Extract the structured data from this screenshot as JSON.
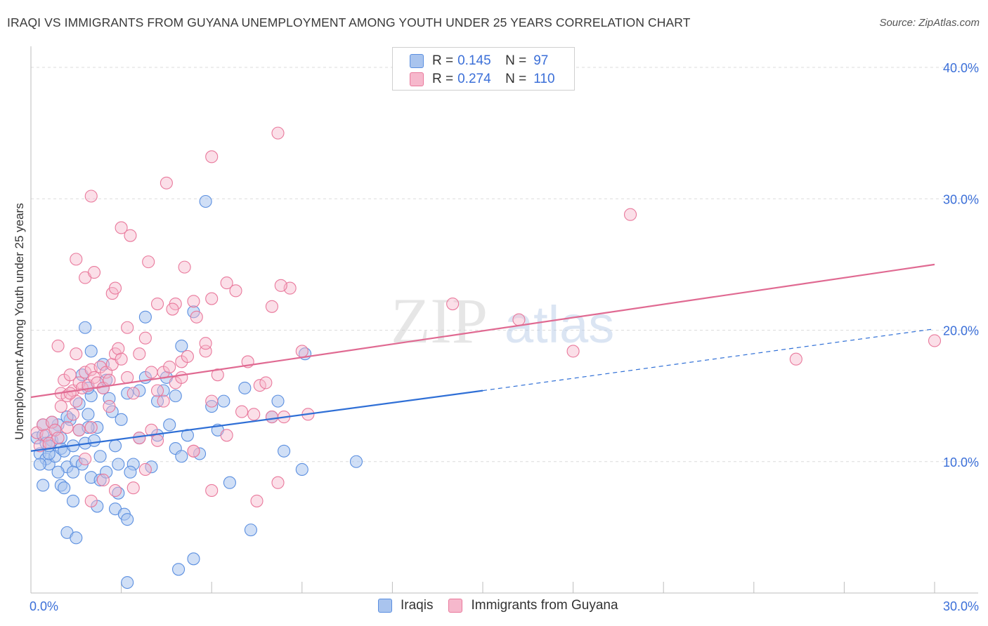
{
  "title": "IRAQI VS IMMIGRANTS FROM GUYANA UNEMPLOYMENT AMONG YOUTH UNDER 25 YEARS CORRELATION CHART",
  "source": "Source: ZipAtlas.com",
  "watermark": {
    "zip": "ZIP",
    "atlas": "atlas"
  },
  "colors": {
    "blue_fill": "#a9c4ee",
    "blue_stroke": "#5b8fe0",
    "blue_line": "#2f6fd6",
    "pink_fill": "#f6b8cc",
    "pink_stroke": "#e9799c",
    "pink_line": "#e06a92",
    "value_text": "#3b6fd8"
  },
  "legend_top": [
    {
      "r_label": "R =",
      "r_value": "0.145",
      "n_label": "N =",
      "n_value": "97"
    },
    {
      "r_label": "R =",
      "r_value": "0.274",
      "n_label": "N =",
      "n_value": "110"
    }
  ],
  "legend_bottom": [
    "Iraqis",
    "Immigrants from Guyana"
  ],
  "chart_data": {
    "type": "scatter",
    "title": "IRAQI VS IMMIGRANTS FROM GUYANA UNEMPLOYMENT AMONG YOUTH UNDER 25 YEARS CORRELATION CHART",
    "xlabel": "",
    "ylabel": "Unemployment Among Youth under 25 years",
    "xlim": [
      0,
      30
    ],
    "ylim": [
      0,
      40
    ],
    "x_tick_labels": [
      "0.0%",
      "30.0%"
    ],
    "y_ticks": [
      10,
      20,
      30,
      40
    ],
    "y_tick_labels": [
      "10.0%",
      "20.0%",
      "30.0%",
      "40.0%"
    ],
    "grid": true,
    "legend_position": "top-center",
    "series": [
      {
        "name": "Iraqis",
        "R": 0.145,
        "N": 97,
        "trend": {
          "x0": 0,
          "y0": 10.8,
          "x1": 15,
          "y1": 15.4,
          "dashed_to_x": 30,
          "dashed_to_y": 20.1
        },
        "points": [
          [
            0.2,
            11.8
          ],
          [
            0.3,
            10.6
          ],
          [
            0.4,
            12.0
          ],
          [
            0.5,
            11.4
          ],
          [
            0.5,
            10.2
          ],
          [
            0.6,
            9.8
          ],
          [
            0.7,
            11.6
          ],
          [
            0.8,
            10.4
          ],
          [
            0.9,
            12.8
          ],
          [
            1.0,
            11.0
          ],
          [
            1.1,
            10.8
          ],
          [
            1.2,
            9.6
          ],
          [
            1.3,
            13.2
          ],
          [
            1.4,
            11.2
          ],
          [
            1.5,
            10.0
          ],
          [
            1.6,
            12.4
          ],
          [
            1.7,
            9.8
          ],
          [
            1.8,
            11.4
          ],
          [
            1.9,
            13.6
          ],
          [
            2.0,
            15.0
          ],
          [
            2.1,
            11.6
          ],
          [
            2.2,
            12.6
          ],
          [
            2.3,
            10.4
          ],
          [
            2.4,
            15.6
          ],
          [
            2.5,
            16.2
          ],
          [
            2.6,
            14.8
          ],
          [
            2.7,
            13.8
          ],
          [
            2.8,
            11.2
          ],
          [
            2.9,
            9.8
          ],
          [
            1.7,
            16.6
          ],
          [
            1.9,
            15.6
          ],
          [
            2.4,
            17.4
          ],
          [
            1.8,
            20.2
          ],
          [
            3.0,
            13.2
          ],
          [
            3.2,
            15.2
          ],
          [
            3.4,
            9.8
          ],
          [
            3.6,
            11.8
          ],
          [
            3.8,
            21.0
          ],
          [
            4.0,
            9.6
          ],
          [
            4.2,
            12.0
          ],
          [
            4.4,
            15.4
          ],
          [
            4.5,
            16.4
          ],
          [
            4.6,
            12.8
          ],
          [
            3.8,
            16.4
          ],
          [
            3.6,
            15.4
          ],
          [
            4.2,
            14.6
          ],
          [
            2.0,
            18.4
          ],
          [
            1.6,
            14.4
          ],
          [
            1.2,
            13.4
          ],
          [
            0.9,
            9.2
          ],
          [
            1.0,
            8.2
          ],
          [
            0.4,
            8.2
          ],
          [
            1.4,
            7.0
          ],
          [
            2.0,
            8.8
          ],
          [
            2.2,
            6.6
          ],
          [
            2.8,
            6.4
          ],
          [
            3.1,
            6.0
          ],
          [
            2.9,
            7.6
          ],
          [
            3.2,
            5.6
          ],
          [
            1.2,
            4.6
          ],
          [
            1.5,
            4.2
          ],
          [
            3.3,
            9.2
          ],
          [
            2.3,
            8.6
          ],
          [
            1.1,
            8.0
          ],
          [
            1.4,
            9.2
          ],
          [
            0.6,
            10.6
          ],
          [
            0.8,
            12.4
          ],
          [
            4.8,
            11.0
          ],
          [
            5.0,
            10.4
          ],
          [
            4.8,
            15.0
          ],
          [
            5.6,
            10.6
          ],
          [
            6.0,
            14.2
          ],
          [
            6.2,
            12.4
          ],
          [
            5.4,
            21.4
          ],
          [
            5.8,
            29.8
          ],
          [
            7.1,
            15.6
          ],
          [
            8.0,
            13.4
          ],
          [
            8.2,
            14.6
          ],
          [
            8.4,
            10.8
          ],
          [
            9.1,
            18.2
          ],
          [
            9.0,
            9.4
          ],
          [
            10.8,
            10.0
          ],
          [
            6.4,
            14.6
          ],
          [
            6.6,
            8.4
          ],
          [
            5.0,
            18.8
          ],
          [
            7.3,
            4.8
          ],
          [
            5.4,
            2.6
          ],
          [
            4.9,
            1.8
          ],
          [
            3.2,
            0.8
          ],
          [
            1.9,
            12.6
          ],
          [
            2.5,
            9.2
          ],
          [
            1.0,
            11.8
          ],
          [
            0.3,
            9.8
          ],
          [
            0.4,
            12.8
          ],
          [
            0.6,
            11.2
          ],
          [
            0.7,
            13.0
          ],
          [
            5.2,
            12.0
          ]
        ]
      },
      {
        "name": "Immigrants from Guyana",
        "R": 0.274,
        "N": 110,
        "trend": {
          "x0": 0,
          "y0": 14.9,
          "x1": 30,
          "y1": 25.0
        },
        "points": [
          [
            0.2,
            12.2
          ],
          [
            0.3,
            11.2
          ],
          [
            0.4,
            12.8
          ],
          [
            0.5,
            12.0
          ],
          [
            0.6,
            11.4
          ],
          [
            0.7,
            13.0
          ],
          [
            0.8,
            12.4
          ],
          [
            0.9,
            11.8
          ],
          [
            1.0,
            15.2
          ],
          [
            1.1,
            16.2
          ],
          [
            1.2,
            15.0
          ],
          [
            1.3,
            16.6
          ],
          [
            1.4,
            15.4
          ],
          [
            1.5,
            14.6
          ],
          [
            1.6,
            16.0
          ],
          [
            1.7,
            15.6
          ],
          [
            1.8,
            16.8
          ],
          [
            1.9,
            15.8
          ],
          [
            2.0,
            17.0
          ],
          [
            2.1,
            16.4
          ],
          [
            2.2,
            16.0
          ],
          [
            2.3,
            17.2
          ],
          [
            2.4,
            15.6
          ],
          [
            2.5,
            16.8
          ],
          [
            2.6,
            16.2
          ],
          [
            2.7,
            17.4
          ],
          [
            2.8,
            18.2
          ],
          [
            2.9,
            18.6
          ],
          [
            3.0,
            17.8
          ],
          [
            3.2,
            16.4
          ],
          [
            3.4,
            15.2
          ],
          [
            3.6,
            18.2
          ],
          [
            3.8,
            19.4
          ],
          [
            4.0,
            16.8
          ],
          [
            4.2,
            15.4
          ],
          [
            4.4,
            16.8
          ],
          [
            4.6,
            17.2
          ],
          [
            4.8,
            16.0
          ],
          [
            5.0,
            17.6
          ],
          [
            5.2,
            18.0
          ],
          [
            5.5,
            21.0
          ],
          [
            5.8,
            18.4
          ],
          [
            6.0,
            14.6
          ],
          [
            6.2,
            16.6
          ],
          [
            6.5,
            12.0
          ],
          [
            7.0,
            13.8
          ],
          [
            7.2,
            17.6
          ],
          [
            7.4,
            13.6
          ],
          [
            7.6,
            15.8
          ],
          [
            7.8,
            16.0
          ],
          [
            8.0,
            13.4
          ],
          [
            8.2,
            8.4
          ],
          [
            8.4,
            13.4
          ],
          [
            8.6,
            23.2
          ],
          [
            9.0,
            18.4
          ],
          [
            9.2,
            13.6
          ],
          [
            7.5,
            7.0
          ],
          [
            6.0,
            7.8
          ],
          [
            5.4,
            10.8
          ],
          [
            4.2,
            11.6
          ],
          [
            3.8,
            9.4
          ],
          [
            3.6,
            11.8
          ],
          [
            3.4,
            8.0
          ],
          [
            2.8,
            7.8
          ],
          [
            2.4,
            8.6
          ],
          [
            2.0,
            7.0
          ],
          [
            1.8,
            10.2
          ],
          [
            1.6,
            12.4
          ],
          [
            1.4,
            13.6
          ],
          [
            1.2,
            12.6
          ],
          [
            0.9,
            18.8
          ],
          [
            1.5,
            18.2
          ],
          [
            2.6,
            14.2
          ],
          [
            3.2,
            20.2
          ],
          [
            4.0,
            12.4
          ],
          [
            4.4,
            14.6
          ],
          [
            4.8,
            22.0
          ],
          [
            5.0,
            16.4
          ],
          [
            5.4,
            10.8
          ],
          [
            2.0,
            12.6
          ],
          [
            1.5,
            25.4
          ],
          [
            1.8,
            24.0
          ],
          [
            2.1,
            24.4
          ],
          [
            2.0,
            30.2
          ],
          [
            2.7,
            22.8
          ],
          [
            2.8,
            23.2
          ],
          [
            3.0,
            27.8
          ],
          [
            3.3,
            27.2
          ],
          [
            3.9,
            25.2
          ],
          [
            4.2,
            22.0
          ],
          [
            4.5,
            31.2
          ],
          [
            4.7,
            21.6
          ],
          [
            5.1,
            24.8
          ],
          [
            5.4,
            22.2
          ],
          [
            5.8,
            19.0
          ],
          [
            6.0,
            22.4
          ],
          [
            6.5,
            23.6
          ],
          [
            6.8,
            23.0
          ],
          [
            8.0,
            21.8
          ],
          [
            8.3,
            23.4
          ],
          [
            6.0,
            33.2
          ],
          [
            8.2,
            35.0
          ],
          [
            14.0,
            22.0
          ],
          [
            16.2,
            20.8
          ],
          [
            18.0,
            18.4
          ],
          [
            19.9,
            28.8
          ],
          [
            25.4,
            17.8
          ],
          [
            30.0,
            19.2
          ],
          [
            1.0,
            14.2
          ],
          [
            1.3,
            15.2
          ]
        ]
      }
    ]
  }
}
